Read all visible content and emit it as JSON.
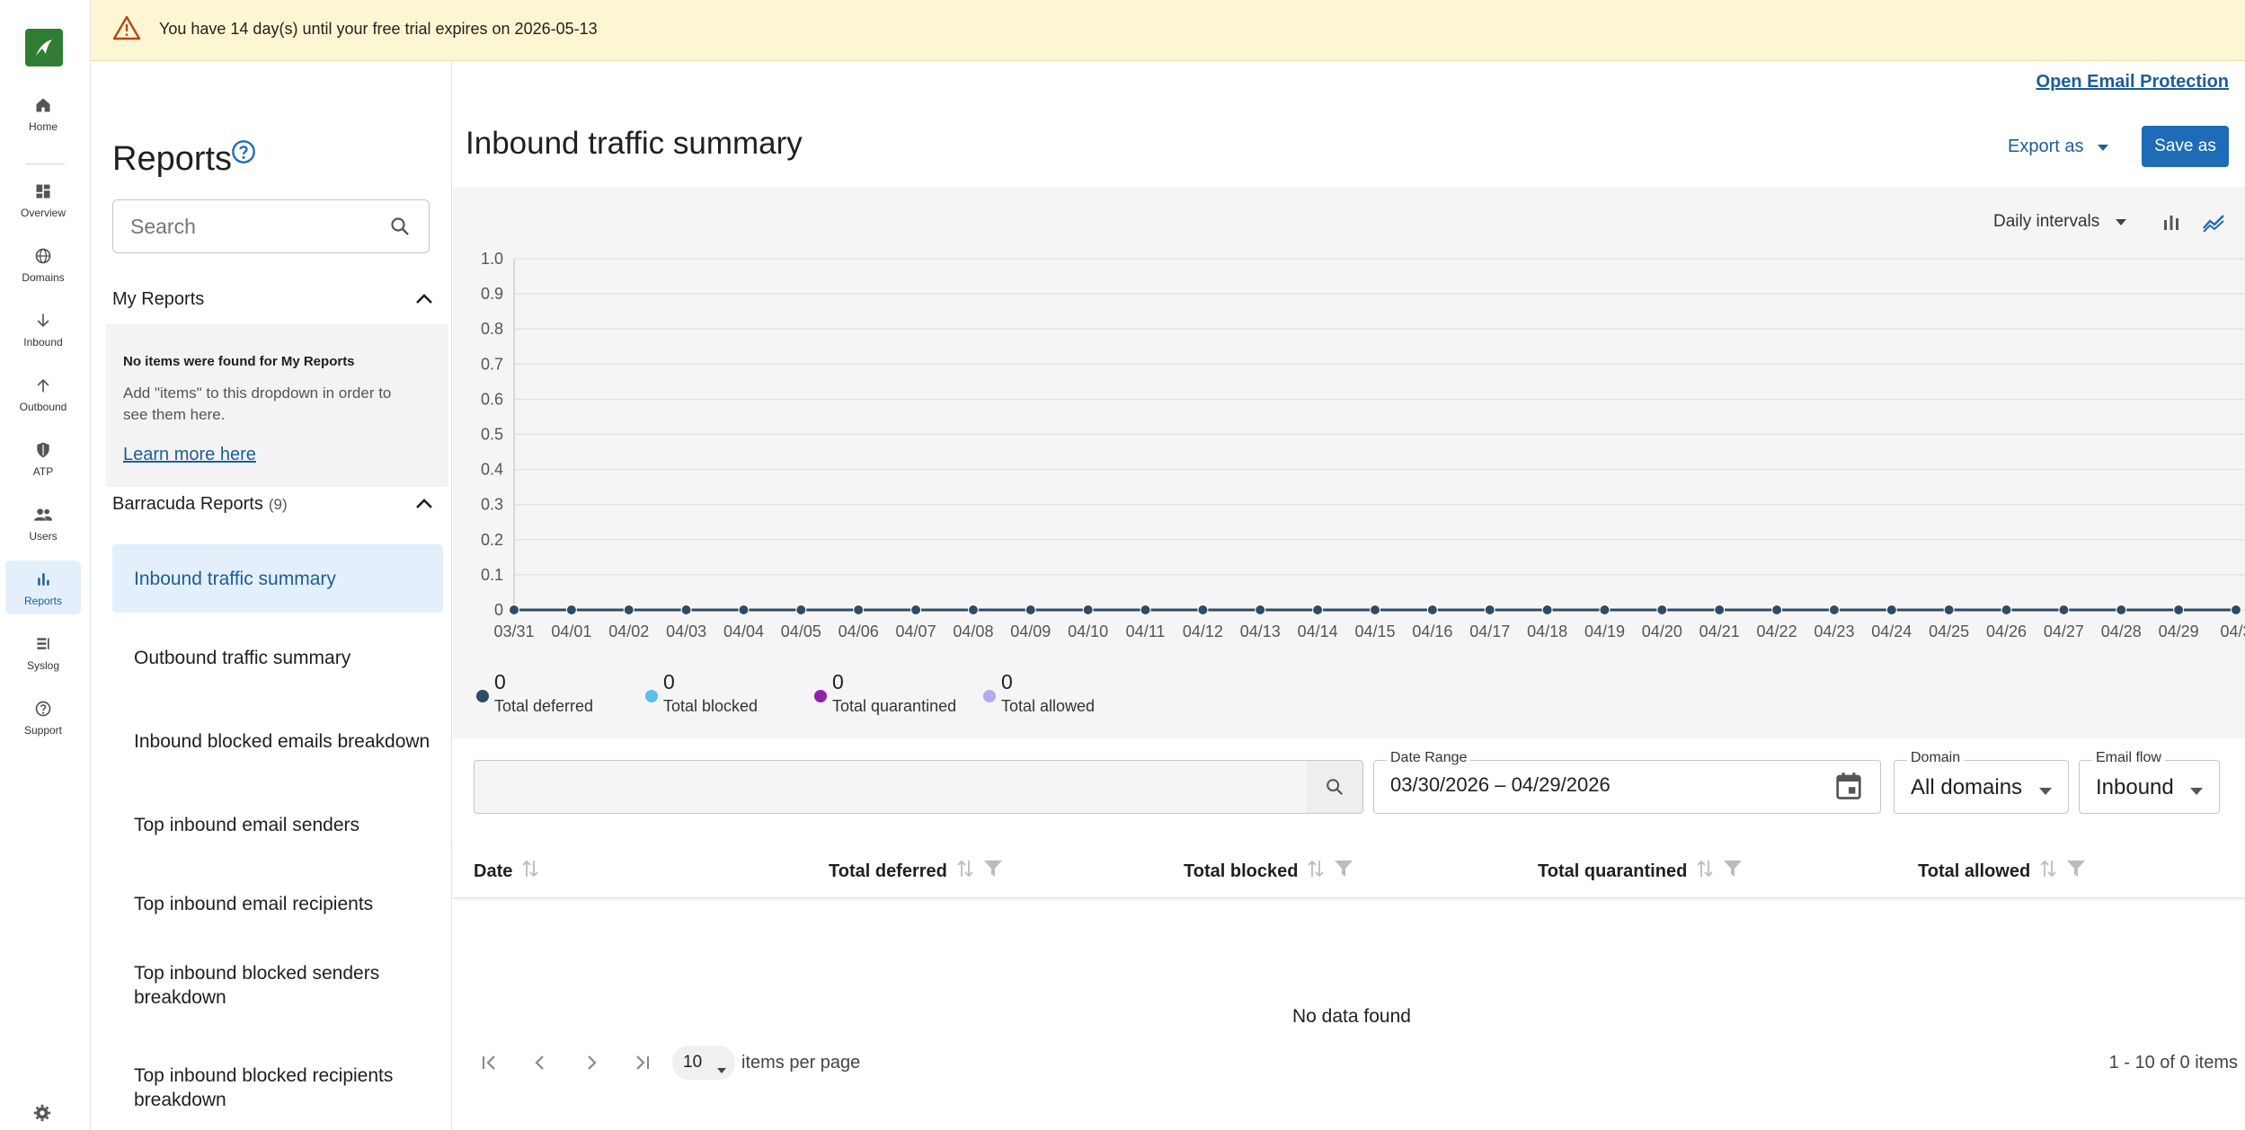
{
  "banner": {
    "text": "You have 14 day(s) until your free trial expires on 2026-05-13"
  },
  "header": {
    "open_link": "Open Email Protection"
  },
  "nav": {
    "items": [
      {
        "label": "Home",
        "icon": "home-icon"
      },
      {
        "label": "Overview",
        "icon": "dashboard-icon"
      },
      {
        "label": "Domains",
        "icon": "globe-icon"
      },
      {
        "label": "Inbound",
        "icon": "arrow-down-icon"
      },
      {
        "label": "Outbound",
        "icon": "arrow-up-icon"
      },
      {
        "label": "ATP",
        "icon": "shield-icon"
      },
      {
        "label": "Users",
        "icon": "users-icon"
      },
      {
        "label": "Reports",
        "icon": "bar-chart-icon"
      },
      {
        "label": "Syslog",
        "icon": "list-icon"
      },
      {
        "label": "Support",
        "icon": "help-circle-icon"
      }
    ],
    "active": "Reports"
  },
  "sidebar": {
    "title": "Reports",
    "search_placeholder": "Search",
    "my_reports": {
      "title": "My Reports",
      "empty_title": "No items were found for My Reports",
      "empty_desc": "Add \"items\" to this dropdown in order to see them here.",
      "learn_more": "Learn more here"
    },
    "barracuda_reports": {
      "title": "Barracuda Reports",
      "count": "(9)",
      "items": [
        "Inbound traffic summary",
        "Outbound traffic summary",
        "Inbound blocked emails breakdown",
        "Top inbound email senders",
        "Top inbound email recipients",
        "Top inbound blocked senders breakdown",
        "Top inbound blocked recipients breakdown"
      ]
    }
  },
  "main": {
    "title": "Inbound traffic summary",
    "export_label": "Export as",
    "save_label": "Save as",
    "interval_label": "Daily intervals"
  },
  "chart_data": {
    "type": "line",
    "title": "",
    "xlabel": "",
    "ylabel": "",
    "ylim": [
      0,
      1.0
    ],
    "y_ticks": [
      "0",
      "0.1",
      "0.2",
      "0.3",
      "0.4",
      "0.5",
      "0.6",
      "0.7",
      "0.8",
      "0.9",
      "1.0"
    ],
    "categories": [
      "03/31",
      "04/01",
      "04/02",
      "04/03",
      "04/04",
      "04/05",
      "04/06",
      "04/07",
      "04/08",
      "04/09",
      "04/10",
      "04/11",
      "04/12",
      "04/13",
      "04/14",
      "04/15",
      "04/16",
      "04/17",
      "04/18",
      "04/19",
      "04/20",
      "04/21",
      "04/22",
      "04/23",
      "04/24",
      "04/25",
      "04/26",
      "04/27",
      "04/28",
      "04/29",
      "04/3"
    ],
    "series": [
      {
        "name": "Total deferred",
        "color": "#2f4b66",
        "values": [
          0,
          0,
          0,
          0,
          0,
          0,
          0,
          0,
          0,
          0,
          0,
          0,
          0,
          0,
          0,
          0,
          0,
          0,
          0,
          0,
          0,
          0,
          0,
          0,
          0,
          0,
          0,
          0,
          0,
          0,
          0
        ]
      },
      {
        "name": "Total blocked",
        "color": "#5bc0eb",
        "values": [
          0,
          0,
          0,
          0,
          0,
          0,
          0,
          0,
          0,
          0,
          0,
          0,
          0,
          0,
          0,
          0,
          0,
          0,
          0,
          0,
          0,
          0,
          0,
          0,
          0,
          0,
          0,
          0,
          0,
          0,
          0
        ]
      },
      {
        "name": "Total quarantined",
        "color": "#8e24aa",
        "values": [
          0,
          0,
          0,
          0,
          0,
          0,
          0,
          0,
          0,
          0,
          0,
          0,
          0,
          0,
          0,
          0,
          0,
          0,
          0,
          0,
          0,
          0,
          0,
          0,
          0,
          0,
          0,
          0,
          0,
          0,
          0
        ]
      },
      {
        "name": "Total allowed",
        "color": "#b9a7ef",
        "values": [
          0,
          0,
          0,
          0,
          0,
          0,
          0,
          0,
          0,
          0,
          0,
          0,
          0,
          0,
          0,
          0,
          0,
          0,
          0,
          0,
          0,
          0,
          0,
          0,
          0,
          0,
          0,
          0,
          0,
          0,
          0
        ]
      }
    ],
    "totals": [
      "0",
      "0",
      "0",
      "0"
    ],
    "grid": true,
    "legend": "bottom-left"
  },
  "filters": {
    "search_value": "",
    "date_range_label": "Date Range",
    "date_range_value": "03/30/2026 – 04/29/2026",
    "domain_label": "Domain",
    "domain_value": "All domains",
    "flow_label": "Email flow",
    "flow_value": "Inbound"
  },
  "table": {
    "columns": [
      "Date",
      "Total deferred",
      "Total blocked",
      "Total quarantined",
      "Total allowed"
    ],
    "empty_text": "No data found",
    "page_size": "10",
    "items_per_page": "items per page",
    "pagination_info": "1 - 10 of 0 items"
  },
  "colors": {
    "accent": "#1e6bb8",
    "link": "#1e5c99",
    "banner_bg": "#fdf6d3",
    "active_bg": "#e3f0fb"
  }
}
